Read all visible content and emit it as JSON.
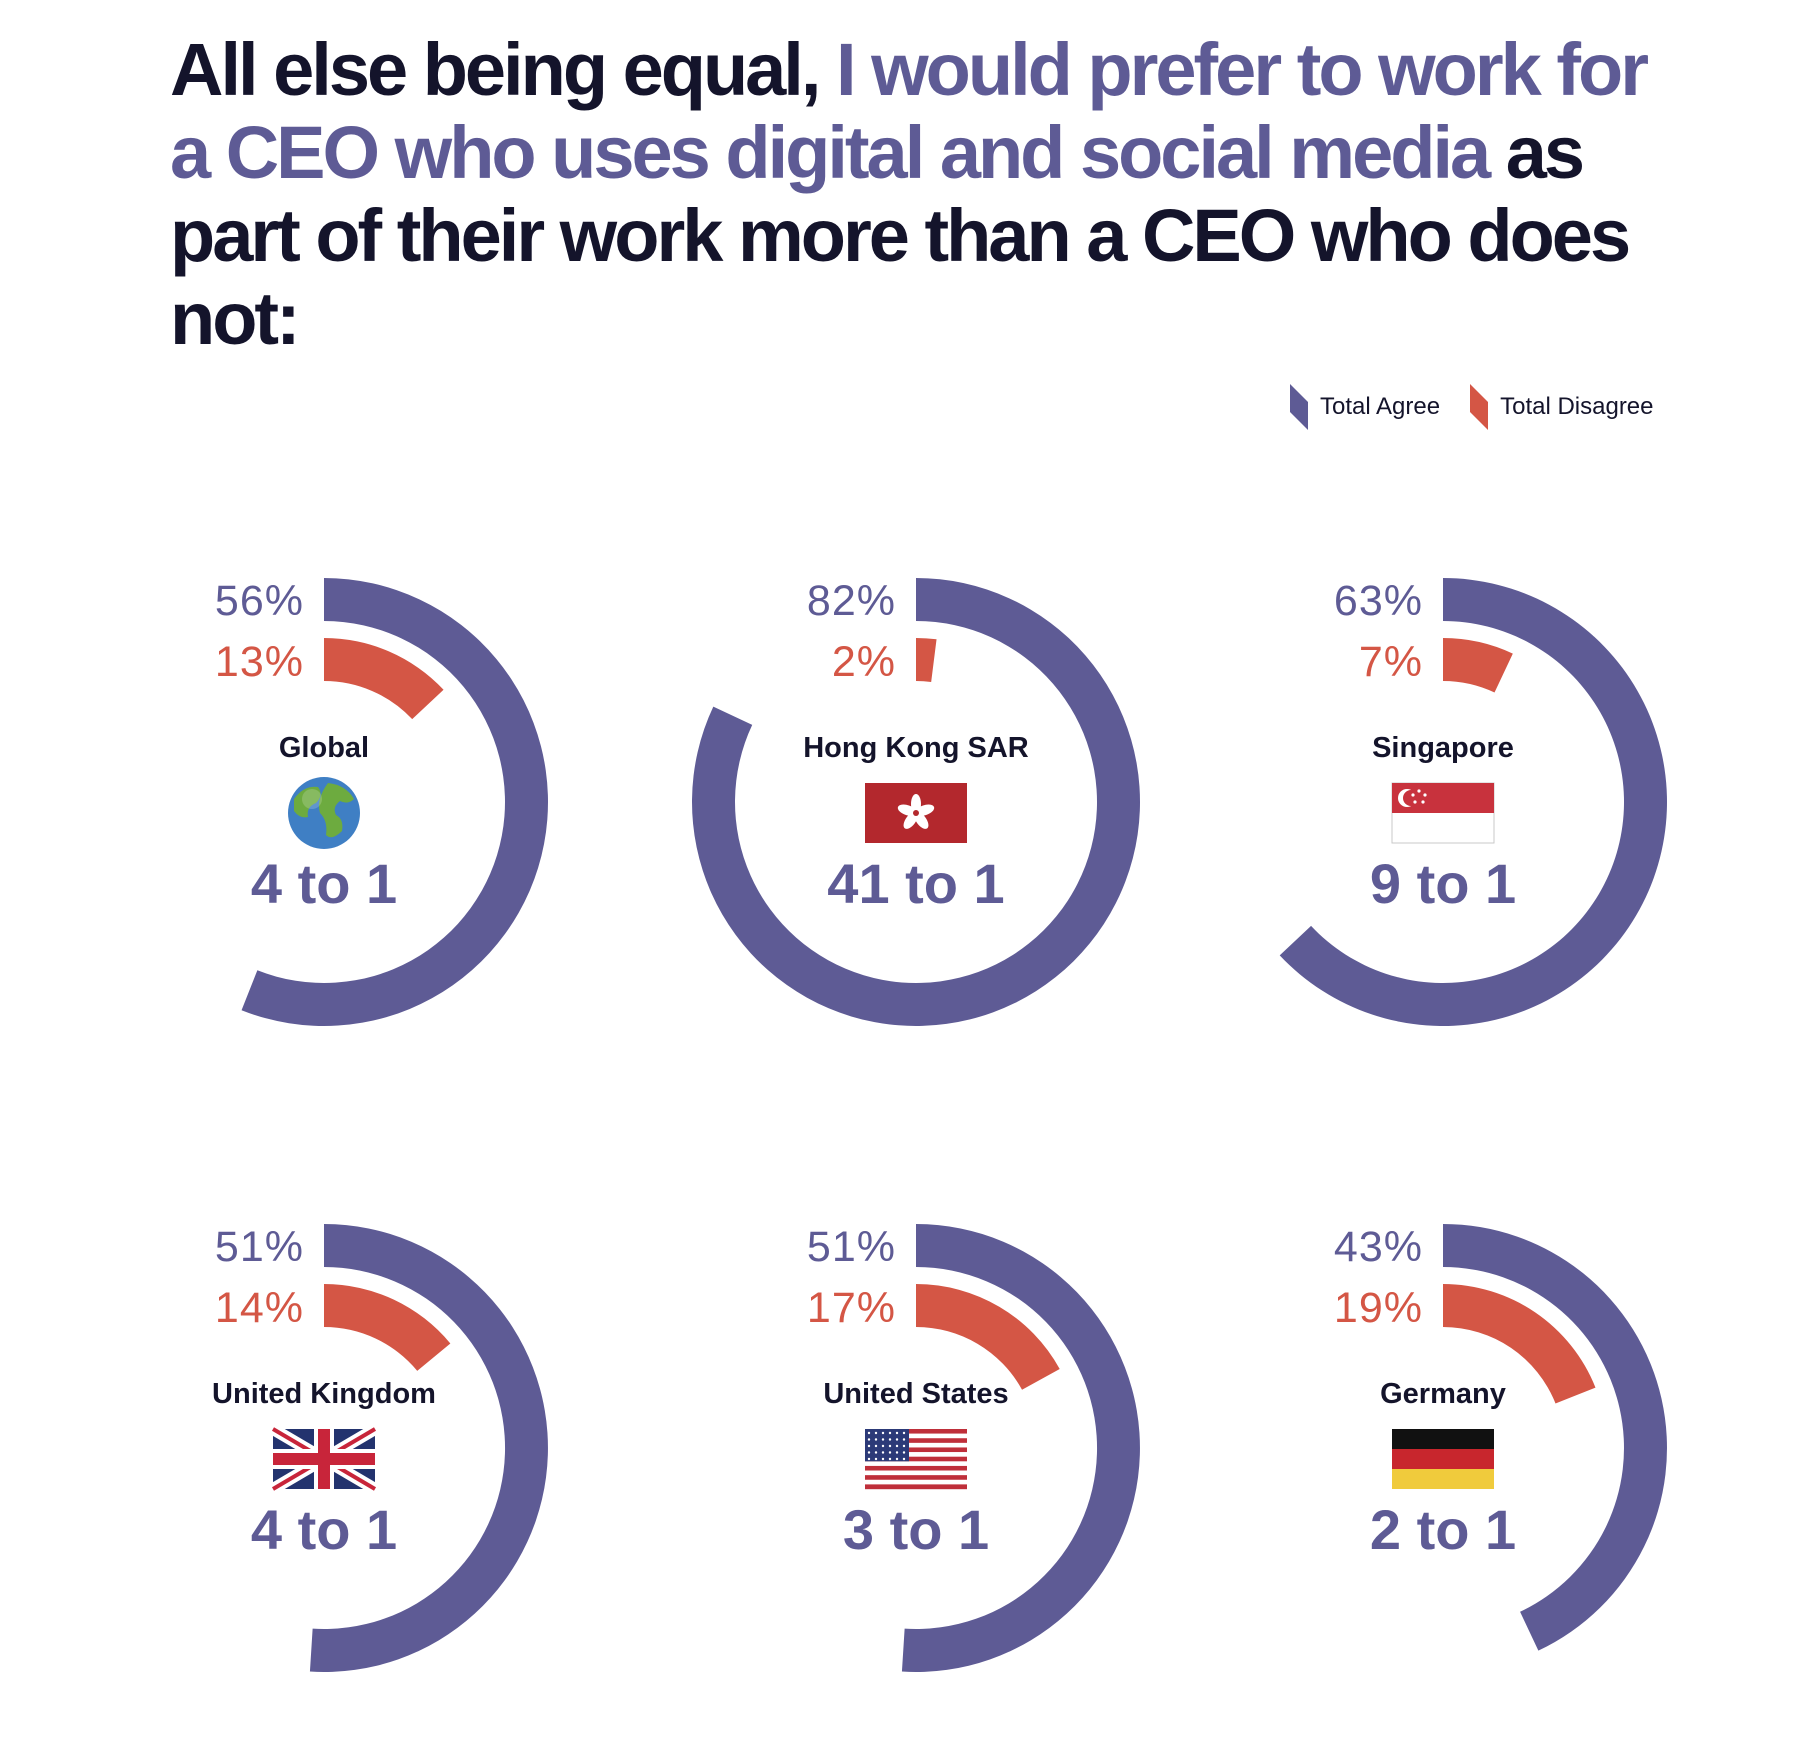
{
  "title": {
    "lead": "All else being equal, ",
    "highlight": "I would prefer to work for a CEO who uses digital and social media",
    "tail": " as part of their work more than a CEO who does not:"
  },
  "legend": [
    {
      "label": "Total Agree",
      "color": "#5e5b95"
    },
    {
      "label": "Total Disagree",
      "color": "#d45645"
    }
  ],
  "colors": {
    "agree": "#5e5b95",
    "disagree": "#d45645",
    "text": "#14142b"
  },
  "chart_data": {
    "type": "radial_bar",
    "series": [
      {
        "name": "Total Agree",
        "unit": "%"
      },
      {
        "name": "Total Disagree",
        "unit": "%"
      }
    ],
    "regions": [
      {
        "name": "Global",
        "icon": "globe-icon",
        "agree": 56,
        "disagree": 13,
        "ratio": "4 to 1"
      },
      {
        "name": "Hong Kong SAR",
        "icon": "hong-kong-flag-icon",
        "agree": 82,
        "disagree": 2,
        "ratio": "41 to 1"
      },
      {
        "name": "Singapore",
        "icon": "singapore-flag-icon",
        "agree": 63,
        "disagree": 7,
        "ratio": "9 to 1"
      },
      {
        "name": "United Kingdom",
        "icon": "uk-flag-icon",
        "agree": 51,
        "disagree": 14,
        "ratio": "4 to 1"
      },
      {
        "name": "United States",
        "icon": "us-flag-icon",
        "agree": 51,
        "disagree": 17,
        "ratio": "3 to 1"
      },
      {
        "name": "Germany",
        "icon": "germany-flag-icon",
        "agree": 43,
        "disagree": 19,
        "ratio": "2 to 1"
      }
    ]
  }
}
